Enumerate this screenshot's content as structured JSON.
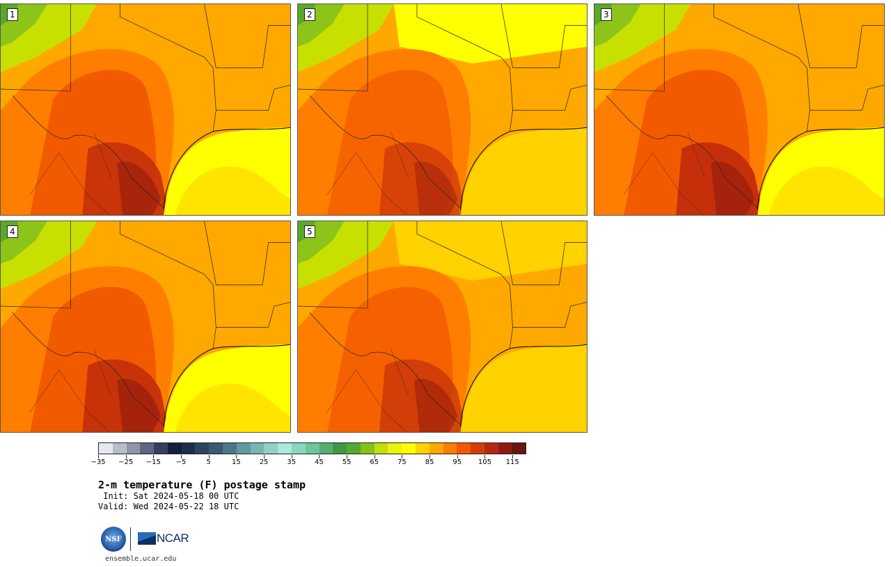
{
  "figure": {
    "title": "2-m temperature (F) postage stamp",
    "init_line": " Init: Sat 2024-05-18 00 UTC",
    "valid_line": "Valid: Wed 2024-05-22 18 UTC",
    "site": "ensemble.ucar.edu",
    "logo_nsf_text": "NSF",
    "logo_ncar_text": "NCAR"
  },
  "members": [
    {
      "label": "1"
    },
    {
      "label": "2"
    },
    {
      "label": "3"
    },
    {
      "label": "4"
    },
    {
      "label": "5"
    }
  ],
  "colorbar": {
    "unit": "F",
    "range": [
      -35,
      120
    ],
    "step": 5,
    "tick_labels": [
      "−35",
      "−25",
      "−15",
      "−5",
      "5",
      "15",
      "25",
      "35",
      "45",
      "55",
      "65",
      "75",
      "85",
      "95",
      "105",
      "115"
    ],
    "colors": [
      "#e6e8ef",
      "#b9bccb",
      "#9096aa",
      "#5f6783",
      "#33405f",
      "#141f3b",
      "#1c2e4e",
      "#2a4561",
      "#385a72",
      "#4a7887",
      "#5f9a9e",
      "#79b6b4",
      "#97cfc8",
      "#a8eadc",
      "#87d9bb",
      "#6cc59b",
      "#54ae72",
      "#3e9a42",
      "#56a92c",
      "#86c11a",
      "#c4dd0c",
      "#eaf20a",
      "#ffff00",
      "#ffd200",
      "#ffa800",
      "#ff7e00",
      "#f25a00",
      "#d73c08",
      "#b52710",
      "#8e1a12",
      "#6a1510"
    ]
  },
  "map_palette": {
    "gulf_warm": "#ffd200",
    "gulf_cool": "#ffff00",
    "land_mid": "#ffa800",
    "land_hot": "#ff7e00",
    "land_hotter": "#f25a00",
    "land_hottest": "#c4300a",
    "land_extreme": "#a0200c",
    "mountain_cool": "#c8e000",
    "mountain_cold": "#8cc41a",
    "mountain_coldest": "#5aa828"
  }
}
